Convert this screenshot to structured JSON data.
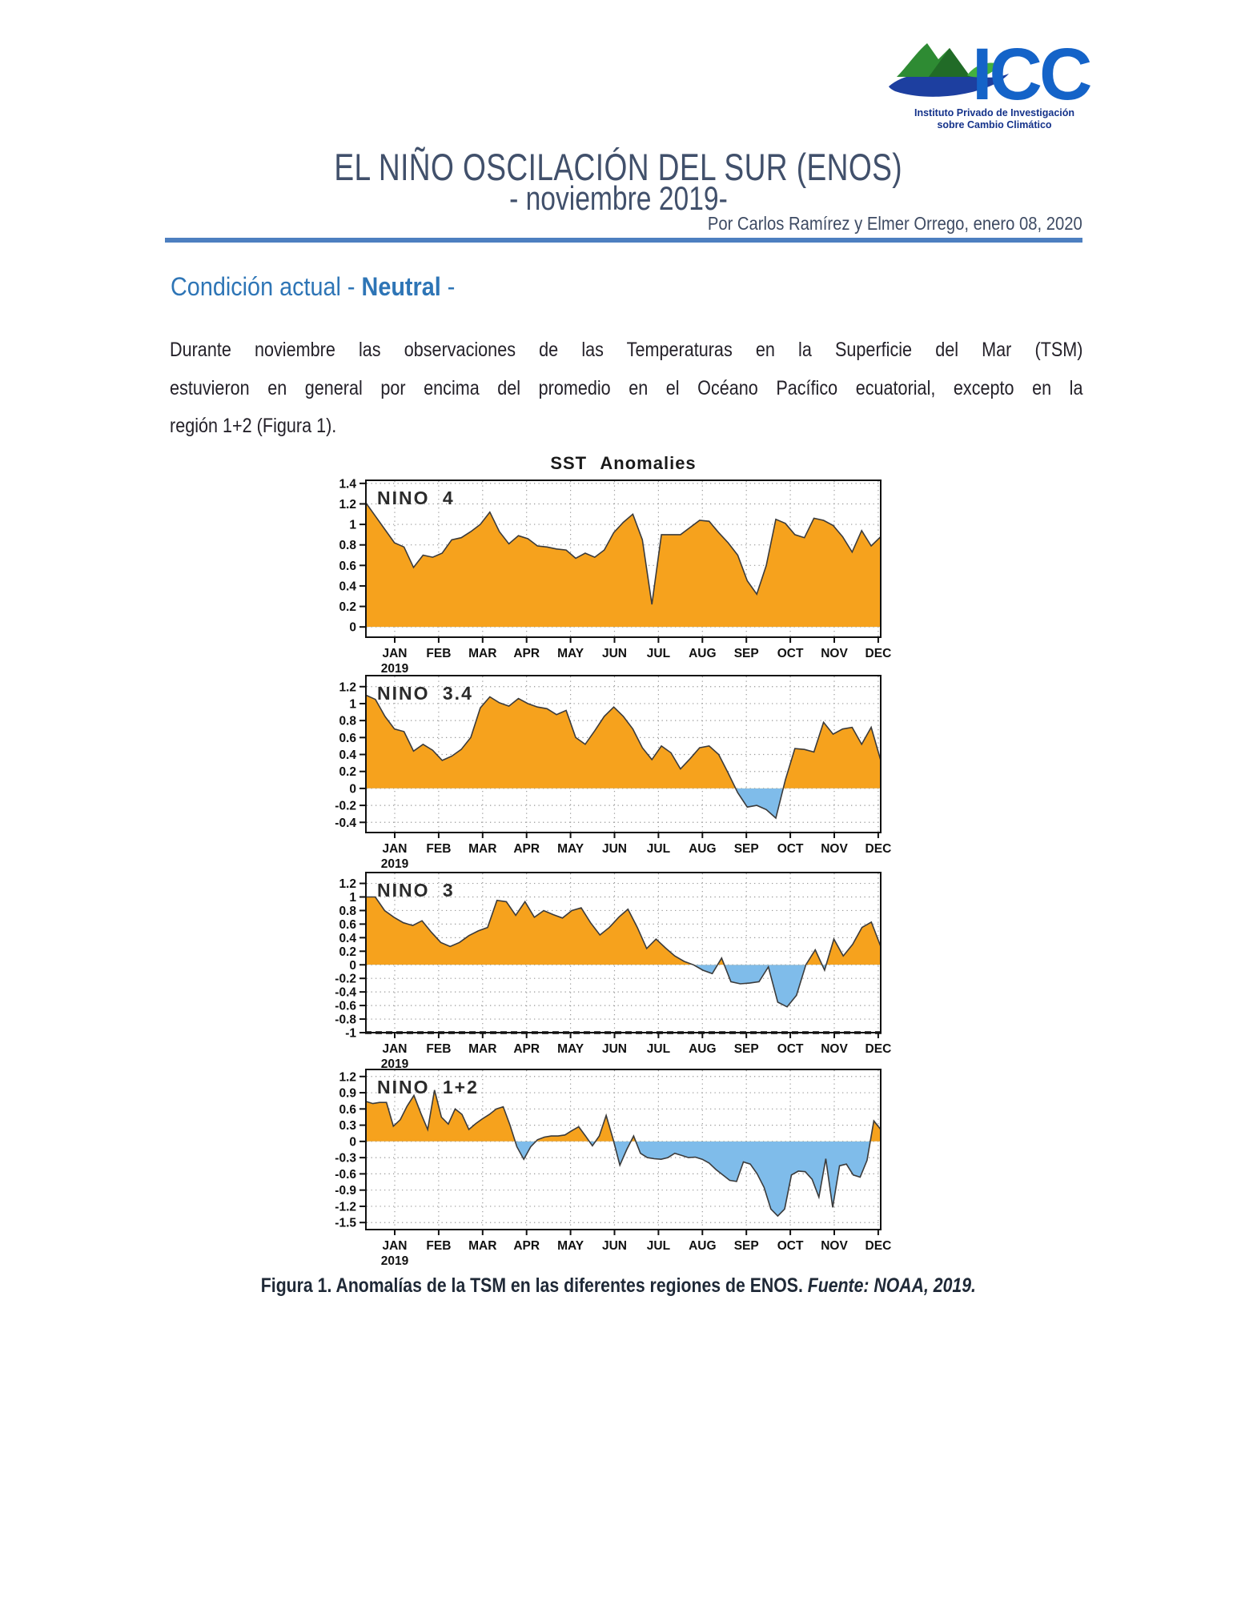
{
  "logo": {
    "acronym": "ICC",
    "line1": "Instituto Privado de Investigación",
    "line2": "sobre Cambio Climático",
    "brand_blue": "#1463c8",
    "mountain_green": "#2e8b33",
    "water_blue": "#1d3fa0"
  },
  "header": {
    "title": "EL NIÑO OSCILACIÓN DEL SUR (ENOS)",
    "subtitle": "- noviembre 2019-",
    "byline": "Por Carlos Ramírez y Elmer Orrego, enero 08, 2020",
    "rule_color": "#4d7fc0"
  },
  "section": {
    "heading_prefix": "Condición actual - ",
    "heading_emphasis": "Neutral",
    "heading_suffix": " -"
  },
  "paragraph": {
    "lines": [
      "Durante noviembre las observaciones de las Temperaturas en la Superficie del Mar (TSM)",
      "estuvieron en general por encima del promedio en el Océano Pacífico ecuatorial, excepto en la",
      "región 1+2 (Figura 1)."
    ]
  },
  "figure_caption": {
    "bold": "Figura 1.",
    "text": " Anomalías de la TSM en las diferentes regiones de ENOS. ",
    "source": "Fuente: NOAA, 2019."
  },
  "chart_data": {
    "type": "area",
    "title": "SST Anomalies",
    "x_tick_labels": [
      "JAN",
      "FEB",
      "MAR",
      "APR",
      "MAY",
      "JUN",
      "JUL",
      "AUG",
      "SEP",
      "OCT",
      "NOV",
      "DEC"
    ],
    "year_label": "2019",
    "grid": true,
    "colors": {
      "positive_fill": "#F6A21D",
      "negative_fill": "#7FBCEA",
      "line": "#3b3b3b"
    },
    "panels": [
      {
        "name": "NINO 4",
        "ylim": [
          -0.1,
          1.43
        ],
        "yticks": [
          0,
          0.2,
          0.4,
          0.6,
          0.8,
          1,
          1.2,
          1.4
        ],
        "values": [
          1.21,
          1.08,
          0.95,
          0.82,
          0.78,
          0.58,
          0.7,
          0.68,
          0.72,
          0.85,
          0.87,
          0.93,
          1.0,
          1.12,
          0.93,
          0.81,
          0.89,
          0.86,
          0.79,
          0.78,
          0.76,
          0.75,
          0.67,
          0.72,
          0.68,
          0.75,
          0.92,
          1.02,
          1.1,
          0.85,
          0.22,
          0.9,
          0.9,
          0.9,
          0.97,
          1.04,
          1.03,
          0.92,
          0.82,
          0.7,
          0.45,
          0.32,
          0.6,
          1.05,
          1.01,
          0.9,
          0.87,
          1.06,
          1.04,
          0.99,
          0.88,
          0.73,
          0.94,
          0.79,
          0.88
        ]
      },
      {
        "name": "NINO 3.4",
        "ylim": [
          -0.52,
          1.33
        ],
        "yticks": [
          -0.4,
          -0.2,
          0,
          0.2,
          0.4,
          0.6,
          0.8,
          1,
          1.2
        ],
        "values": [
          1.1,
          1.05,
          0.85,
          0.7,
          0.67,
          0.44,
          0.52,
          0.45,
          0.33,
          0.38,
          0.46,
          0.6,
          0.95,
          1.08,
          1.01,
          0.97,
          1.06,
          1.0,
          0.96,
          0.94,
          0.87,
          0.92,
          0.6,
          0.52,
          0.68,
          0.85,
          0.96,
          0.85,
          0.7,
          0.48,
          0.34,
          0.5,
          0.42,
          0.23,
          0.35,
          0.48,
          0.5,
          0.4,
          0.18,
          -0.05,
          -0.22,
          -0.2,
          -0.25,
          -0.35,
          0.1,
          0.47,
          0.46,
          0.43,
          0.78,
          0.64,
          0.7,
          0.72,
          0.52,
          0.72,
          0.33
        ]
      },
      {
        "name": "NINO 3",
        "ylim": [
          -1.0,
          1.36
        ],
        "yticks": [
          -1,
          -0.8,
          -0.6,
          -0.4,
          -0.2,
          0,
          0.2,
          0.4,
          0.6,
          0.8,
          1,
          1.2
        ],
        "bottom_dashed": true,
        "values": [
          1.0,
          1.0,
          0.8,
          0.7,
          0.62,
          0.58,
          0.65,
          0.48,
          0.33,
          0.27,
          0.33,
          0.43,
          0.5,
          0.55,
          0.95,
          0.93,
          0.73,
          0.93,
          0.7,
          0.8,
          0.74,
          0.69,
          0.8,
          0.84,
          0.62,
          0.44,
          0.55,
          0.7,
          0.82,
          0.55,
          0.24,
          0.38,
          0.25,
          0.13,
          0.05,
          0.0,
          -0.08,
          -0.13,
          0.1,
          -0.25,
          -0.28,
          -0.27,
          -0.25,
          -0.03,
          -0.55,
          -0.62,
          -0.45,
          0.0,
          0.22,
          -0.08,
          0.38,
          0.13,
          0.3,
          0.55,
          0.63,
          0.27
        ]
      },
      {
        "name": "NINO 1+2",
        "ylim": [
          -1.63,
          1.33
        ],
        "yticks": [
          -1.5,
          -1.2,
          -0.9,
          -0.6,
          -0.3,
          0,
          0.3,
          0.6,
          0.9,
          1.2
        ],
        "values": [
          0.74,
          0.7,
          0.72,
          0.72,
          0.28,
          0.4,
          0.65,
          0.85,
          0.52,
          0.22,
          0.95,
          0.45,
          0.32,
          0.6,
          0.5,
          0.22,
          0.33,
          0.42,
          0.5,
          0.6,
          0.64,
          0.3,
          -0.1,
          -0.33,
          -0.1,
          0.03,
          0.08,
          0.1,
          0.1,
          0.12,
          0.2,
          0.27,
          0.1,
          -0.08,
          0.1,
          0.48,
          0.05,
          -0.44,
          -0.15,
          0.1,
          -0.22,
          -0.3,
          -0.32,
          -0.33,
          -0.3,
          -0.22,
          -0.26,
          -0.3,
          -0.29,
          -0.33,
          -0.4,
          -0.52,
          -0.62,
          -0.72,
          -0.74,
          -0.38,
          -0.42,
          -0.6,
          -0.85,
          -1.25,
          -1.38,
          -1.25,
          -0.62,
          -0.55,
          -0.56,
          -0.7,
          -1.03,
          -0.32,
          -1.22,
          -0.45,
          -0.42,
          -0.62,
          -0.66,
          -0.35,
          0.38,
          0.22
        ]
      }
    ]
  }
}
